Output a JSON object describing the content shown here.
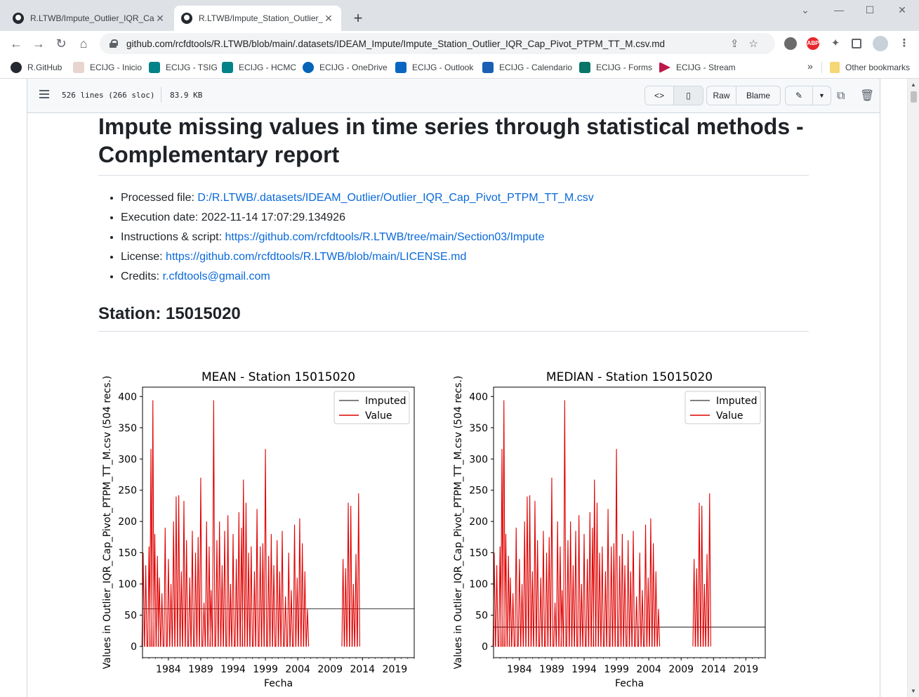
{
  "browser": {
    "tabs": [
      {
        "title": "R.LTWB/Impute_Outlier_IQR_Cap_Pivot_PTPM_TT_M.csv.md",
        "active": false
      },
      {
        "title": "R.LTWB/Impute_Station_Outlier_IQR_Cap_Pivot_PTPM_TT_M.csv.md",
        "active": true
      }
    ],
    "new_tab": "+",
    "url": "github.com/rcfdtools/R.LTWB/blob/main/.datasets/IDEAM_Impute/Impute_Station_Outlier_IQR_Cap_Pivot_PTPM_TT_M.csv.md",
    "bookmarks": [
      {
        "label": "R.GitHub",
        "color": "#24292f"
      },
      {
        "label": "ECIJG - Inicio",
        "color": "#e8d5d0"
      },
      {
        "label": "ECIJG - TSIG",
        "color": "#038387"
      },
      {
        "label": "ECIJG - HCMC",
        "color": "#038387"
      },
      {
        "label": "ECIJG - OneDrive",
        "color": "#0364b8"
      },
      {
        "label": "ECIJG - Outlook",
        "color": "#0a66c2"
      },
      {
        "label": "ECIJG - Calendario",
        "color": "#1a5fb4"
      },
      {
        "label": "ECIJG - Forms",
        "color": "#077568"
      },
      {
        "label": "ECIJG - Stream",
        "color": "#bc1948"
      }
    ],
    "more_bookmarks": "»",
    "other_bookmarks": "Other bookmarks",
    "extensions": [
      "ABP"
    ]
  },
  "file_header": {
    "lines": "526 lines (266 sloc)",
    "size": "83.9 KB",
    "buttons": {
      "raw": "Raw",
      "blame": "Blame"
    }
  },
  "report": {
    "title": "Impute missing values in time series through statistical methods - Complementary report",
    "items": [
      {
        "label": "Processed file: ",
        "value": "D:/R.LTWB/.datasets/IDEAM_Outlier/Outlier_IQR_Cap_Pivot_PTPM_TT_M.csv",
        "link": true
      },
      {
        "label": "Execution date: ",
        "value": "2022-11-14 17:07:29.134926",
        "link": false
      },
      {
        "label": "Instructions & script: ",
        "value": "https://github.com/rcfdtools/R.LTWB/tree/main/Section03/Impute",
        "link": true
      },
      {
        "label": "License: ",
        "value": "https://github.com/rcfdtools/R.LTWB/blob/main/LICENSE.md",
        "link": true
      },
      {
        "label": "Credits: ",
        "value": "r.cfdtools@gmail.com",
        "link": true
      }
    ],
    "station_heading": "Station: 15015020"
  },
  "chart_data": [
    {
      "type": "line",
      "title": "MEAN - Station 15015020",
      "xlabel": "Fecha",
      "ylabel": "Values in Outlier_IQR_Cap_Pivot_PTPM_TT_M.csv (504 recs.)",
      "x_ticks": [
        "1984",
        "1989",
        "1994",
        "1999",
        "2004",
        "2009",
        "2014",
        "2019"
      ],
      "y_ticks": [
        0,
        50,
        100,
        150,
        200,
        250,
        300,
        350,
        400
      ],
      "xlim": [
        1980.0,
        2022.0
      ],
      "ylim": [
        -18,
        415
      ],
      "legend": "top-right",
      "imputed_fill": 60,
      "series": [
        {
          "name": "Imputed",
          "color": "#000000"
        },
        {
          "name": "Value",
          "color": "#e00000"
        }
      ]
    },
    {
      "type": "line",
      "title": "MEDIAN - Station 15015020",
      "xlabel": "Fecha",
      "ylabel": "Values in Outlier_IQR_Cap_Pivot_PTPM_TT_M.csv (504 recs.)",
      "x_ticks": [
        "1984",
        "1989",
        "1994",
        "1999",
        "2004",
        "2009",
        "2014",
        "2019"
      ],
      "y_ticks": [
        0,
        50,
        100,
        150,
        200,
        250,
        300,
        350,
        400
      ],
      "xlim": [
        1980.0,
        2022.0
      ],
      "ylim": [
        -18,
        415
      ],
      "legend": "top-right",
      "imputed_fill": 31,
      "series": [
        {
          "name": "Imputed",
          "color": "#000000"
        },
        {
          "name": "Value",
          "color": "#e00000"
        }
      ]
    }
  ],
  "value_peaks": [
    [
      1980.1,
      150
    ],
    [
      1980.5,
      130
    ],
    [
      1981.0,
      160
    ],
    [
      1981.3,
      316
    ],
    [
      1981.6,
      394
    ],
    [
      1981.9,
      180
    ],
    [
      1982.3,
      145
    ],
    [
      1982.6,
      110
    ],
    [
      1983.0,
      85
    ],
    [
      1983.5,
      190
    ],
    [
      1984.0,
      140
    ],
    [
      1984.4,
      100
    ],
    [
      1984.8,
      200
    ],
    [
      1985.2,
      240
    ],
    [
      1985.6,
      242
    ],
    [
      1986.0,
      120
    ],
    [
      1986.4,
      233
    ],
    [
      1986.8,
      170
    ],
    [
      1987.3,
      110
    ],
    [
      1987.7,
      185
    ],
    [
      1988.2,
      150
    ],
    [
      1988.6,
      175
    ],
    [
      1989.0,
      270
    ],
    [
      1989.5,
      70
    ],
    [
      1989.9,
      200
    ],
    [
      1990.3,
      160
    ],
    [
      1990.6,
      90
    ],
    [
      1991.0,
      394
    ],
    [
      1991.5,
      170
    ],
    [
      1991.9,
      200
    ],
    [
      1992.3,
      130
    ],
    [
      1992.7,
      185
    ],
    [
      1993.2,
      210
    ],
    [
      1993.6,
      100
    ],
    [
      1994.0,
      180
    ],
    [
      1994.5,
      140
    ],
    [
      1994.9,
      215
    ],
    [
      1995.3,
      190
    ],
    [
      1995.6,
      267
    ],
    [
      1996.0,
      230
    ],
    [
      1996.4,
      150
    ],
    [
      1996.8,
      160
    ],
    [
      1997.3,
      120
    ],
    [
      1997.7,
      220
    ],
    [
      1998.2,
      160
    ],
    [
      1998.6,
      165
    ],
    [
      1999.0,
      316
    ],
    [
      1999.5,
      145
    ],
    [
      1999.9,
      180
    ],
    [
      2000.3,
      130
    ],
    [
      2000.8,
      170
    ],
    [
      2001.2,
      120
    ],
    [
      2001.6,
      185
    ],
    [
      2002.1,
      80
    ],
    [
      2002.6,
      150
    ],
    [
      2003.0,
      90
    ],
    [
      2003.5,
      195
    ],
    [
      2003.9,
      110
    ],
    [
      2004.3,
      205
    ],
    [
      2004.7,
      165
    ],
    [
      2005.1,
      120
    ],
    [
      2005.5,
      60
    ],
    [
      2011.0,
      140
    ],
    [
      2011.4,
      125
    ],
    [
      2011.8,
      230
    ],
    [
      2012.2,
      225
    ],
    [
      2012.6,
      100
    ],
    [
      2013.0,
      148
    ],
    [
      2013.4,
      245
    ]
  ],
  "value_segments": [
    [
      1980.0,
      2005.7
    ],
    [
      2010.9,
      2013.7
    ]
  ]
}
